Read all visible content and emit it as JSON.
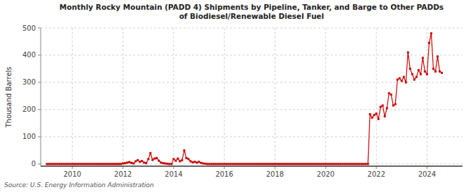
{
  "chart_data": {
    "type": "line",
    "title": "Monthly Rocky Mountain (PADD 4) Shipments by Pipeline, Tanker, and Barge to Other PADDs\nof Biodiesel/Renewable Diesel Fuel",
    "ylabel": "Thousand Barrels",
    "source": "Source: U.S. Energy Information Administration",
    "color": "#cc0000",
    "marker": "square",
    "line_style": "solid",
    "grid": true,
    "xlim": [
      2008.75,
      2025.4
    ],
    "ylim": [
      -8,
      500
    ],
    "yticks": [
      0,
      100,
      200,
      300,
      400,
      500
    ],
    "xticks": [
      2010,
      2012,
      2014,
      2016,
      2018,
      2020,
      2022,
      2024
    ],
    "x": [
      2009.0,
      2009.083,
      2009.167,
      2009.25,
      2009.333,
      2009.417,
      2009.5,
      2009.583,
      2009.667,
      2009.75,
      2009.833,
      2009.917,
      2010.0,
      2010.083,
      2010.167,
      2010.25,
      2010.333,
      2010.417,
      2010.5,
      2010.583,
      2010.667,
      2010.75,
      2010.833,
      2010.917,
      2011.0,
      2011.083,
      2011.167,
      2011.25,
      2011.333,
      2011.417,
      2011.5,
      2011.583,
      2011.667,
      2011.75,
      2011.833,
      2011.917,
      2012.0,
      2012.083,
      2012.167,
      2012.25,
      2012.333,
      2012.417,
      2012.5,
      2012.583,
      2012.667,
      2012.75,
      2012.833,
      2012.917,
      2013.0,
      2013.083,
      2013.167,
      2013.25,
      2013.333,
      2013.417,
      2013.5,
      2013.583,
      2013.667,
      2013.75,
      2013.833,
      2013.917,
      2014.0,
      2014.083,
      2014.167,
      2014.25,
      2014.333,
      2014.417,
      2014.5,
      2014.583,
      2014.667,
      2014.75,
      2014.833,
      2014.917,
      2015.0,
      2015.083,
      2015.167,
      2015.25,
      2015.333,
      2015.417,
      2015.5,
      2015.583,
      2015.667,
      2015.75,
      2015.833,
      2015.917,
      2016.0,
      2016.083,
      2016.167,
      2016.25,
      2016.333,
      2016.417,
      2016.5,
      2016.583,
      2016.667,
      2016.75,
      2016.833,
      2016.917,
      2017.0,
      2017.083,
      2017.167,
      2017.25,
      2017.333,
      2017.417,
      2017.5,
      2017.583,
      2017.667,
      2017.75,
      2017.833,
      2017.917,
      2018.0,
      2018.083,
      2018.167,
      2018.25,
      2018.333,
      2018.417,
      2018.5,
      2018.583,
      2018.667,
      2018.75,
      2018.833,
      2018.917,
      2019.0,
      2019.083,
      2019.167,
      2019.25,
      2019.333,
      2019.417,
      2019.5,
      2019.583,
      2019.667,
      2019.75,
      2019.833,
      2019.917,
      2020.0,
      2020.083,
      2020.167,
      2020.25,
      2020.333,
      2020.417,
      2020.5,
      2020.583,
      2020.667,
      2020.75,
      2020.833,
      2020.917,
      2021.0,
      2021.083,
      2021.167,
      2021.25,
      2021.333,
      2021.417,
      2021.5,
      2021.583,
      2021.667,
      2021.75,
      2021.833,
      2021.917,
      2022.0,
      2022.083,
      2022.167,
      2022.25,
      2022.333,
      2022.417,
      2022.5,
      2022.583,
      2022.667,
      2022.75,
      2022.833,
      2022.917,
      2023.0,
      2023.083,
      2023.167,
      2023.25,
      2023.333,
      2023.417,
      2023.5,
      2023.583,
      2023.667,
      2023.75,
      2023.833,
      2023.917,
      2024.0,
      2024.083,
      2024.167,
      2024.25,
      2024.333,
      2024.417,
      2024.5,
      2024.583
    ],
    "values": [
      0,
      0,
      0,
      0,
      0,
      0,
      0,
      0,
      0,
      0,
      0,
      0,
      0,
      0,
      0,
      0,
      0,
      0,
      0,
      0,
      0,
      0,
      0,
      0,
      0,
      0,
      0,
      0,
      0,
      0,
      0,
      0,
      0,
      0,
      0,
      0,
      2,
      3,
      5,
      7,
      4,
      2,
      10,
      14,
      8,
      11,
      5,
      3,
      18,
      40,
      15,
      20,
      22,
      12,
      5,
      3,
      2,
      1,
      0,
      0,
      18,
      12,
      20,
      10,
      14,
      50,
      22,
      18,
      10,
      6,
      8,
      5,
      8,
      4,
      2,
      1,
      0,
      0,
      0,
      0,
      0,
      0,
      0,
      0,
      0,
      0,
      0,
      0,
      0,
      0,
      0,
      0,
      0,
      0,
      0,
      0,
      0,
      0,
      0,
      0,
      0,
      0,
      0,
      0,
      0,
      0,
      0,
      0,
      0,
      0,
      0,
      0,
      0,
      0,
      0,
      0,
      0,
      0,
      0,
      0,
      0,
      0,
      0,
      0,
      0,
      0,
      0,
      0,
      0,
      0,
      0,
      0,
      0,
      0,
      0,
      0,
      0,
      0,
      0,
      0,
      0,
      0,
      0,
      0,
      0,
      0,
      0,
      0,
      0,
      0,
      0,
      0,
      0,
      183,
      170,
      180,
      185,
      165,
      210,
      215,
      175,
      205,
      260,
      255,
      215,
      220,
      310,
      315,
      305,
      320,
      300,
      410,
      350,
      330,
      310,
      320,
      345,
      330,
      390,
      340,
      330,
      445,
      480,
      350,
      340,
      395,
      340,
      335
    ]
  }
}
